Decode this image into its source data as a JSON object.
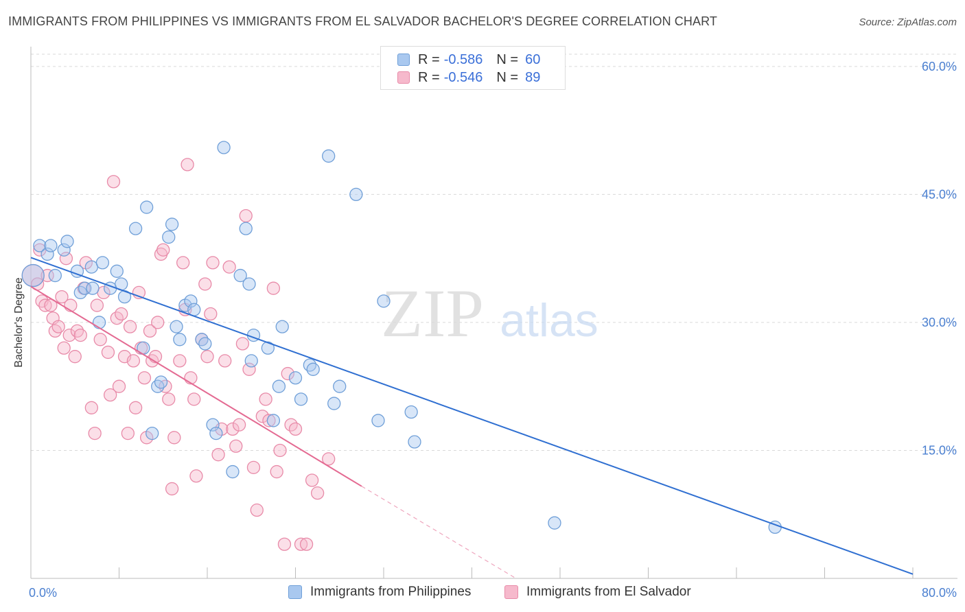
{
  "title": "IMMIGRANTS FROM PHILIPPINES VS IMMIGRANTS FROM EL SALVADOR BACHELOR'S DEGREE CORRELATION CHART",
  "source": "Source: ZipAtlas.com",
  "watermark": {
    "zip": "ZIP",
    "atlas": "atlas"
  },
  "legend": {
    "items": [
      {
        "r_label": "R =",
        "r_value": "-0.586",
        "n_label": "N =",
        "n_value": "60"
      },
      {
        "r_label": "R =",
        "r_value": "-0.546",
        "n_label": "N =",
        "n_value": "89"
      }
    ]
  },
  "colors": {
    "philippines_fill": "#a9c8ef",
    "philippines_stroke": "#6f9fd8",
    "philippines_line": "#2f6fd1",
    "elsalvador_fill": "#f6b9cc",
    "elsalvador_stroke": "#e88aa8",
    "elsalvador_line": "#e46a92",
    "tick_text": "#4a7fd0",
    "grid": "#d9d9d9"
  },
  "chart_data": {
    "type": "scatter",
    "title": "IMMIGRANTS FROM PHILIPPINES VS IMMIGRANTS FROM EL SALVADOR BACHELOR'S DEGREE CORRELATION CHART",
    "xlabel": "",
    "ylabel": "Bachelor's Degree",
    "xlim": [
      0,
      80
    ],
    "ylim": [
      0,
      62
    ],
    "x_tick_labels": [
      "0.0%",
      "80.0%"
    ],
    "y_ticks": [
      15,
      30,
      45,
      60
    ],
    "y_tick_labels": [
      "15.0%",
      "30.0%",
      "45.0%",
      "60.0%"
    ],
    "grid": "horizontal dashed",
    "legend_position": "top-center",
    "series": [
      {
        "name": "Immigrants from Philippines",
        "color_key": "philippines",
        "points": [
          [
            0.2,
            35.5
          ],
          [
            0.8,
            39.0
          ],
          [
            1.5,
            38.0
          ],
          [
            1.8,
            39.0
          ],
          [
            2.2,
            35.5
          ],
          [
            3.0,
            38.5
          ],
          [
            3.3,
            39.5
          ],
          [
            4.2,
            36.0
          ],
          [
            4.5,
            33.5
          ],
          [
            4.9,
            34.0
          ],
          [
            5.5,
            36.5
          ],
          [
            5.6,
            34.0
          ],
          [
            6.2,
            30.0
          ],
          [
            6.5,
            37.0
          ],
          [
            7.2,
            34.0
          ],
          [
            7.8,
            36.0
          ],
          [
            8.2,
            34.5
          ],
          [
            8.5,
            33.0
          ],
          [
            9.5,
            41.0
          ],
          [
            10.2,
            27.0
          ],
          [
            10.5,
            43.5
          ],
          [
            11.0,
            17.0
          ],
          [
            11.5,
            22.5
          ],
          [
            11.8,
            23.0
          ],
          [
            12.5,
            40.0
          ],
          [
            12.8,
            41.5
          ],
          [
            13.2,
            29.5
          ],
          [
            13.5,
            28.0
          ],
          [
            14.0,
            32.0
          ],
          [
            14.5,
            32.5
          ],
          [
            14.8,
            31.5
          ],
          [
            15.5,
            28.0
          ],
          [
            15.8,
            27.5
          ],
          [
            16.5,
            18.0
          ],
          [
            16.8,
            17.0
          ],
          [
            17.5,
            50.5
          ],
          [
            18.3,
            12.5
          ],
          [
            19.0,
            35.5
          ],
          [
            19.5,
            41.0
          ],
          [
            19.8,
            34.5
          ],
          [
            20.0,
            25.5
          ],
          [
            20.2,
            28.5
          ],
          [
            21.5,
            27.0
          ],
          [
            22.0,
            18.5
          ],
          [
            22.5,
            22.5
          ],
          [
            22.8,
            29.5
          ],
          [
            24.0,
            23.5
          ],
          [
            24.5,
            21.0
          ],
          [
            25.3,
            25.0
          ],
          [
            25.6,
            24.5
          ],
          [
            27.0,
            49.5
          ],
          [
            27.5,
            20.5
          ],
          [
            28.0,
            22.5
          ],
          [
            29.5,
            45.0
          ],
          [
            31.5,
            18.5
          ],
          [
            32.0,
            32.5
          ],
          [
            34.5,
            19.5
          ],
          [
            34.8,
            16.0
          ],
          [
            47.5,
            6.5
          ],
          [
            67.5,
            6.0
          ]
        ],
        "fit": {
          "x": [
            0,
            80
          ],
          "y": [
            37.6,
            0.5
          ]
        }
      },
      {
        "name": "Immigrants from El Salvador",
        "color_key": "elsalvador",
        "points": [
          [
            0.2,
            35.5
          ],
          [
            0.6,
            34.5
          ],
          [
            0.8,
            38.5
          ],
          [
            1.0,
            32.5
          ],
          [
            1.3,
            32.0
          ],
          [
            1.5,
            35.5
          ],
          [
            1.8,
            32.0
          ],
          [
            2.0,
            30.5
          ],
          [
            2.2,
            29.0
          ],
          [
            2.5,
            29.5
          ],
          [
            2.8,
            33.0
          ],
          [
            3.0,
            27.0
          ],
          [
            3.2,
            37.5
          ],
          [
            3.5,
            28.5
          ],
          [
            3.6,
            32.0
          ],
          [
            4.0,
            26.0
          ],
          [
            4.2,
            29.0
          ],
          [
            4.5,
            28.5
          ],
          [
            4.8,
            34.0
          ],
          [
            5.0,
            37.0
          ],
          [
            5.5,
            20.0
          ],
          [
            5.8,
            17.0
          ],
          [
            6.0,
            32.0
          ],
          [
            6.3,
            28.0
          ],
          [
            6.6,
            33.5
          ],
          [
            7.0,
            26.5
          ],
          [
            7.2,
            21.5
          ],
          [
            7.5,
            46.5
          ],
          [
            7.8,
            30.5
          ],
          [
            8.0,
            22.5
          ],
          [
            8.2,
            31.0
          ],
          [
            8.5,
            26.0
          ],
          [
            8.8,
            17.0
          ],
          [
            9.0,
            29.5
          ],
          [
            9.3,
            25.5
          ],
          [
            9.5,
            20.0
          ],
          [
            9.8,
            33.5
          ],
          [
            10.0,
            27.0
          ],
          [
            10.3,
            23.5
          ],
          [
            10.5,
            16.5
          ],
          [
            10.8,
            29.0
          ],
          [
            11.0,
            25.5
          ],
          [
            11.3,
            26.0
          ],
          [
            11.5,
            30.0
          ],
          [
            11.8,
            38.0
          ],
          [
            12.0,
            38.5
          ],
          [
            12.2,
            22.5
          ],
          [
            12.5,
            21.0
          ],
          [
            12.8,
            10.5
          ],
          [
            13.0,
            16.5
          ],
          [
            13.5,
            25.5
          ],
          [
            13.8,
            37.0
          ],
          [
            14.0,
            31.5
          ],
          [
            14.2,
            48.5
          ],
          [
            14.5,
            23.5
          ],
          [
            14.8,
            21.0
          ],
          [
            15.0,
            12.0
          ],
          [
            15.5,
            28.0
          ],
          [
            15.8,
            34.5
          ],
          [
            16.0,
            26.0
          ],
          [
            16.3,
            31.0
          ],
          [
            16.5,
            37.0
          ],
          [
            17.0,
            14.5
          ],
          [
            17.3,
            17.5
          ],
          [
            17.6,
            25.5
          ],
          [
            18.0,
            36.5
          ],
          [
            18.3,
            17.5
          ],
          [
            18.6,
            15.5
          ],
          [
            18.9,
            18.0
          ],
          [
            19.2,
            27.5
          ],
          [
            19.5,
            42.5
          ],
          [
            19.8,
            24.5
          ],
          [
            20.2,
            13.0
          ],
          [
            20.5,
            8.0
          ],
          [
            21.0,
            19.0
          ],
          [
            21.3,
            21.0
          ],
          [
            21.6,
            18.5
          ],
          [
            22.0,
            34.0
          ],
          [
            22.3,
            12.5
          ],
          [
            22.6,
            15.0
          ],
          [
            23.0,
            4.0
          ],
          [
            23.3,
            24.0
          ],
          [
            23.6,
            18.0
          ],
          [
            24.0,
            17.5
          ],
          [
            24.5,
            4.0
          ],
          [
            25.0,
            4.0
          ],
          [
            25.5,
            11.5
          ],
          [
            26.0,
            10.0
          ],
          [
            27.0,
            14.0
          ]
        ],
        "fit": {
          "x": [
            0,
            30
          ],
          "y": [
            34.2,
            10.8
          ]
        },
        "fit_extension": {
          "x": [
            30,
            44
          ],
          "y": [
            10.8,
            0
          ]
        }
      }
    ]
  },
  "bottom_legend": [
    {
      "label": "Immigrants from Philippines",
      "color_key": "philippines"
    },
    {
      "label": "Immigrants from El Salvador",
      "color_key": "elsalvador"
    }
  ]
}
